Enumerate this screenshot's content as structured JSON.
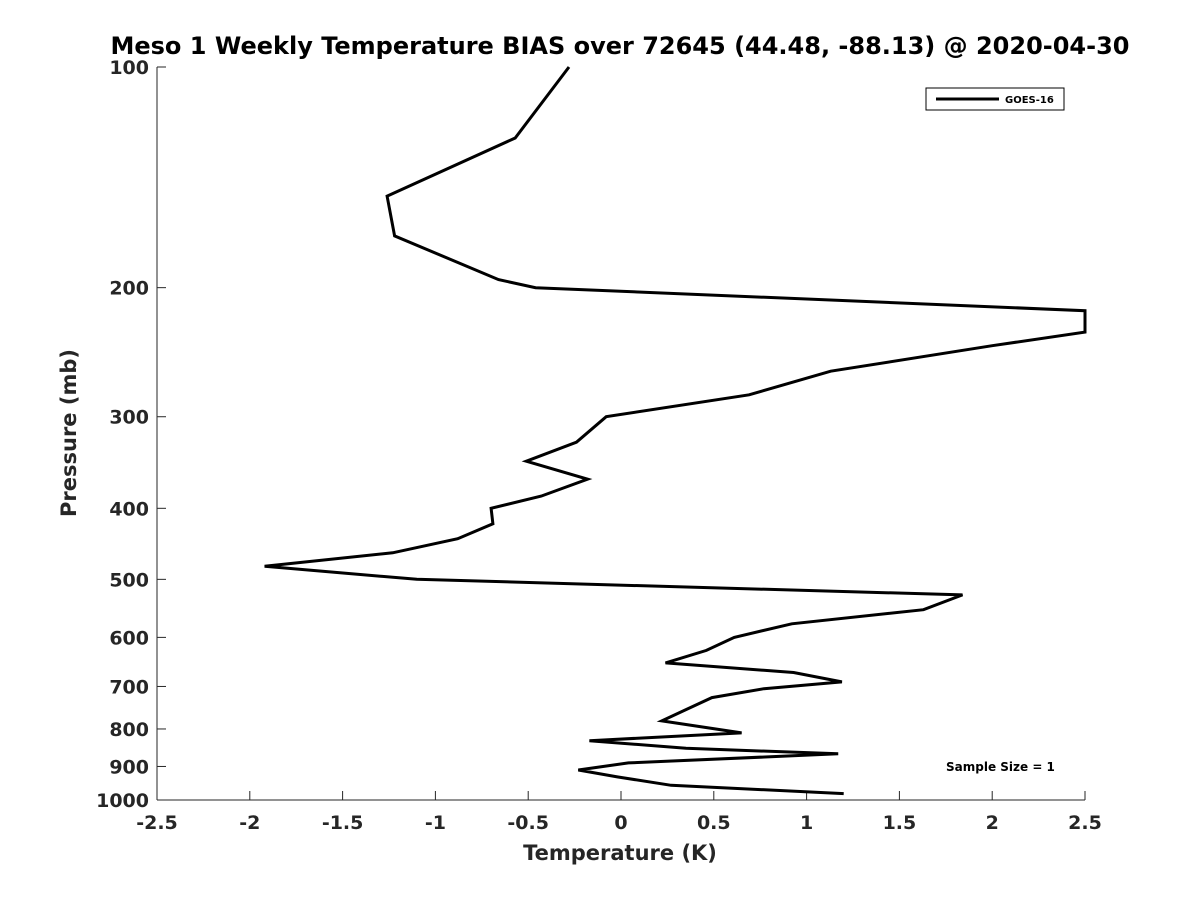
{
  "chart_data": {
    "type": "line",
    "title": "Meso 1 Weekly Temperature BIAS over 72645 (44.48, -88.13) @ 2020-04-30",
    "xlabel": "Temperature (K)",
    "ylabel": "Pressure (mb)",
    "xlim": [
      -2.5,
      2.5
    ],
    "ylim": [
      100,
      1000
    ],
    "y_scale": "log",
    "y_reversed": true,
    "grid": false,
    "legend_position": "top-right",
    "x_tick_labels": [
      "-2.5",
      "-2",
      "-1.5",
      "-1",
      "-0.5",
      "0",
      "0.5",
      "1",
      "1.5",
      "2",
      "2.5"
    ],
    "y_tick_labels": [
      "100",
      "200",
      "300",
      "400",
      "500",
      "600",
      "700",
      "800",
      "900",
      "1000"
    ],
    "line_color": "#000000",
    "annotation": "Sample Size = 1",
    "series": [
      {
        "name": "GOES-16",
        "points": [
          [
            -0.28,
            100
          ],
          [
            -0.57,
            125
          ],
          [
            -1.26,
            150
          ],
          [
            -1.22,
            170
          ],
          [
            -0.66,
            195
          ],
          [
            -0.46,
            200
          ],
          [
            2.5,
            215
          ],
          [
            2.5,
            230
          ],
          [
            2.0,
            240
          ],
          [
            1.13,
            260
          ],
          [
            0.69,
            280
          ],
          [
            -0.08,
            300
          ],
          [
            -0.24,
            325
          ],
          [
            -0.51,
            345
          ],
          [
            -0.18,
            365
          ],
          [
            -0.43,
            385
          ],
          [
            -0.7,
            400
          ],
          [
            -0.69,
            420
          ],
          [
            -0.88,
            440
          ],
          [
            -1.23,
            460
          ],
          [
            -1.92,
            480
          ],
          [
            -1.1,
            500
          ],
          [
            1.84,
            525
          ],
          [
            1.63,
            550
          ],
          [
            0.92,
            575
          ],
          [
            0.61,
            600
          ],
          [
            0.46,
            625
          ],
          [
            0.24,
            650
          ],
          [
            0.93,
            670
          ],
          [
            1.19,
            690
          ],
          [
            0.77,
            705
          ],
          [
            0.49,
            725
          ],
          [
            0.34,
            755
          ],
          [
            0.22,
            780
          ],
          [
            0.65,
            810
          ],
          [
            -0.17,
            830
          ],
          [
            0.35,
            850
          ],
          [
            1.17,
            865
          ],
          [
            0.04,
            890
          ],
          [
            -0.23,
            910
          ],
          [
            -0.02,
            930
          ],
          [
            0.27,
            955
          ],
          [
            1.2,
            980
          ]
        ]
      }
    ]
  }
}
